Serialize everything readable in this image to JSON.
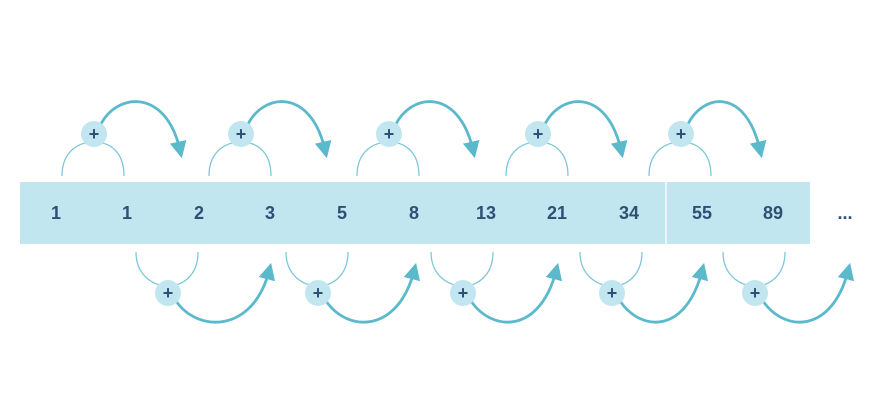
{
  "sequence": {
    "terms": [
      "1",
      "1",
      "2",
      "3",
      "5",
      "8",
      "13",
      "21",
      "34",
      "55",
      "89"
    ],
    "continuation": "...",
    "operator": "+"
  },
  "colors": {
    "strip": "#c2e6ef",
    "strip_divider": "#e9f6fa",
    "text": "#2f4f75",
    "arrow": "#5bb9cc",
    "thin_line": "#7ec8d8",
    "plus_circle": "#c2e6ef"
  },
  "icons": {
    "operator_badge": "plus-icon",
    "pointer": "arrowhead-icon"
  }
}
